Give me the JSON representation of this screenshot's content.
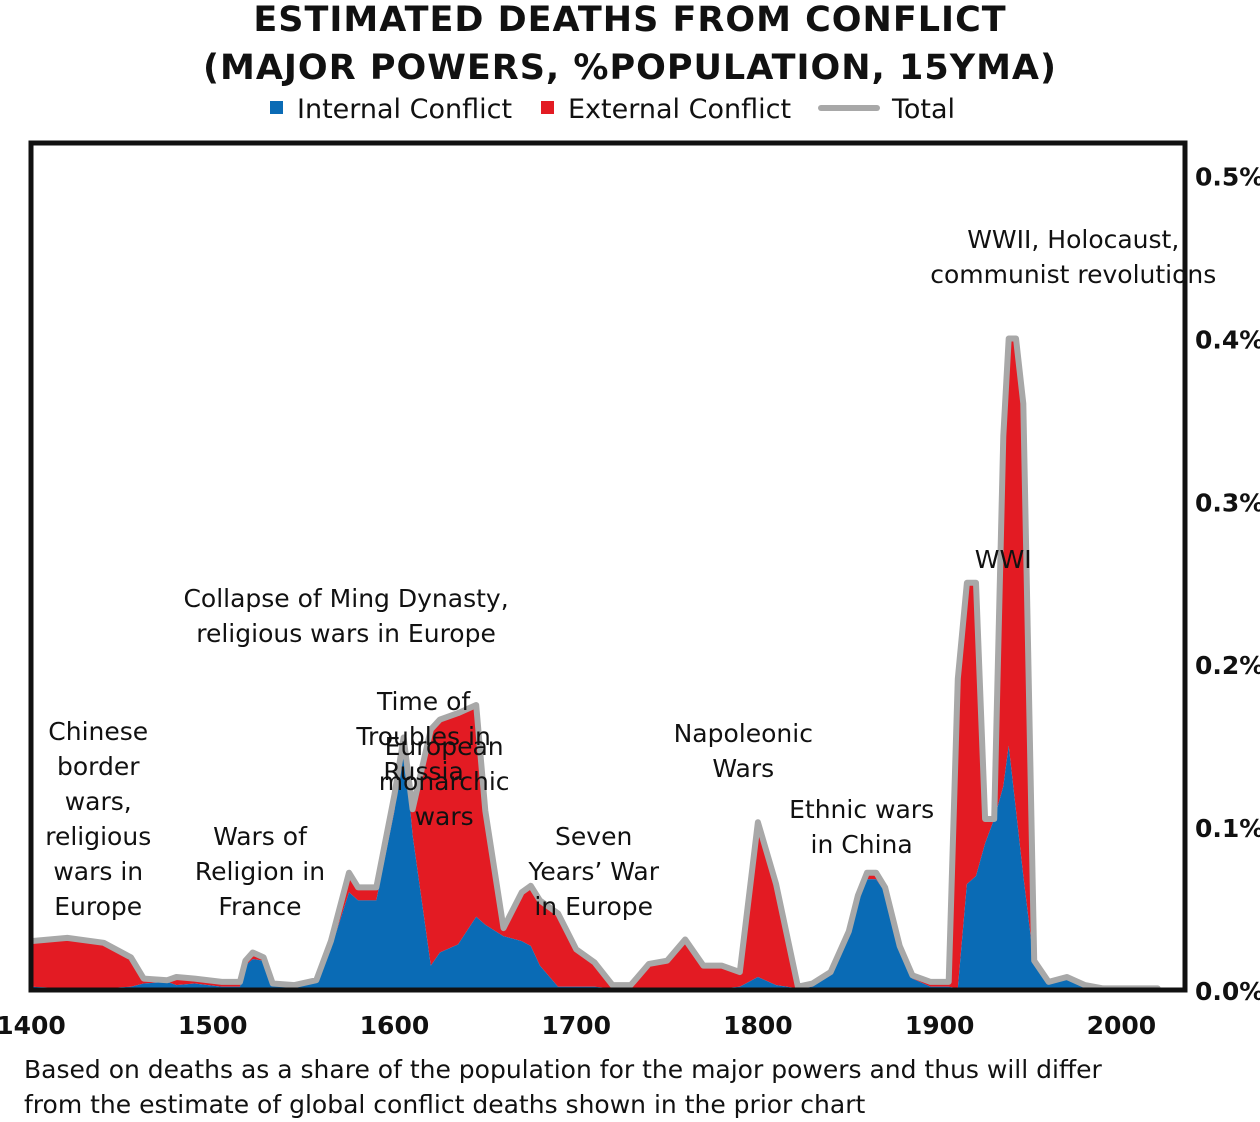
{
  "title_line1": "ESTIMATED DEATHS FROM CONFLICT",
  "title_line2": "(MAJOR POWERS, %POPULATION, 15YMA)",
  "legend": {
    "internal": "Internal Conflict",
    "external": "External Conflict",
    "total": "Total"
  },
  "colors": {
    "internal": "#0a6bb5",
    "external": "#e31b23",
    "total": "#a8a8a8"
  },
  "footnote_line1": "Based on deaths as a share of the population for the major powers and thus will differ",
  "footnote_line2": "from the estimate of global conflict deaths shown in the prior chart",
  "chart_data": {
    "type": "area",
    "title": "ESTIMATED DEATHS FROM CONFLICT (MAJOR POWERS, %POPULATION, 15YMA)",
    "xlabel": "",
    "ylabel": "",
    "xlim": [
      1400,
      2035
    ],
    "ylim": [
      0,
      0.0052
    ],
    "x_ticks": [
      1400,
      1500,
      1600,
      1700,
      1800,
      1900,
      2000
    ],
    "x_tick_labels": [
      "1400",
      "1500",
      "1600",
      "1700",
      "1800",
      "1900",
      "2000"
    ],
    "y_ticks": [
      0,
      0.001,
      0.002,
      0.003,
      0.004,
      0.005
    ],
    "y_tick_labels": [
      "0.0%",
      "0.1%",
      "0.2%",
      "0.3%",
      "0.4%",
      "0.5%"
    ],
    "y_axis_side": "right",
    "stacked": true,
    "series": [
      {
        "name": "Internal Conflict",
        "points": [
          [
            1400,
            2e-05
          ],
          [
            1420,
            1e-05
          ],
          [
            1440,
            1e-05
          ],
          [
            1455,
            2e-05
          ],
          [
            1462,
            4e-05
          ],
          [
            1475,
            5e-05
          ],
          [
            1480,
            3e-05
          ],
          [
            1490,
            4e-05
          ],
          [
            1505,
            2e-05
          ],
          [
            1515,
            2e-05
          ],
          [
            1518,
            0.00015
          ],
          [
            1522,
            0.00019
          ],
          [
            1528,
            0.00018
          ],
          [
            1533,
            3e-05
          ],
          [
            1545,
            2e-05
          ],
          [
            1557,
            5e-05
          ],
          [
            1565,
            0.00025
          ],
          [
            1575,
            0.0006
          ],
          [
            1580,
            0.00055
          ],
          [
            1590,
            0.00055
          ],
          [
            1600,
            0.0011
          ],
          [
            1605,
            0.00155
          ],
          [
            1610,
            0.00095
          ],
          [
            1620,
            0.00015
          ],
          [
            1625,
            0.00023
          ],
          [
            1635,
            0.00028
          ],
          [
            1645,
            0.00045
          ],
          [
            1650,
            0.0004
          ],
          [
            1660,
            0.00033
          ],
          [
            1670,
            0.0003
          ],
          [
            1675,
            0.00027
          ],
          [
            1680,
            0.00015
          ],
          [
            1690,
            2e-05
          ],
          [
            1700,
            2e-05
          ],
          [
            1710,
            2e-05
          ],
          [
            1720,
            1e-05
          ],
          [
            1730,
            1e-05
          ],
          [
            1740,
            1e-05
          ],
          [
            1750,
            1e-05
          ],
          [
            1760,
            1e-05
          ],
          [
            1770,
            1e-05
          ],
          [
            1780,
            1e-05
          ],
          [
            1790,
            2e-05
          ],
          [
            1800,
            8e-05
          ],
          [
            1810,
            3e-05
          ],
          [
            1822,
            1e-05
          ],
          [
            1830,
            2e-05
          ],
          [
            1840,
            0.0001
          ],
          [
            1850,
            0.00035
          ],
          [
            1855,
            0.00055
          ],
          [
            1860,
            0.00068
          ],
          [
            1865,
            0.00068
          ],
          [
            1870,
            0.0006
          ],
          [
            1878,
            0.00025
          ],
          [
            1885,
            7e-05
          ],
          [
            1895,
            2e-05
          ],
          [
            1905,
            2e-05
          ],
          [
            1910,
            1e-05
          ],
          [
            1915,
            0.00065
          ],
          [
            1920,
            0.0007
          ],
          [
            1925,
            0.0009
          ],
          [
            1930,
            0.00105
          ],
          [
            1935,
            0.00125
          ],
          [
            1938,
            0.0015
          ],
          [
            1942,
            0.0011
          ],
          [
            1946,
            0.0007
          ],
          [
            1952,
            0.00015
          ],
          [
            1960,
            4e-05
          ],
          [
            1970,
            7e-05
          ],
          [
            1980,
            2e-05
          ],
          [
            1990,
            1e-05
          ],
          [
            2000,
            1e-05
          ],
          [
            2020,
            1e-05
          ]
        ]
      },
      {
        "name": "External Conflict",
        "points": [
          [
            1400,
            0.00028
          ],
          [
            1420,
            0.00031
          ],
          [
            1440,
            0.00028
          ],
          [
            1455,
            0.00018
          ],
          [
            1462,
            3e-05
          ],
          [
            1475,
            1e-05
          ],
          [
            1480,
            5e-05
          ],
          [
            1490,
            3e-05
          ],
          [
            1505,
            3e-05
          ],
          [
            1515,
            3e-05
          ],
          [
            1518,
            3e-05
          ],
          [
            1522,
            4e-05
          ],
          [
            1528,
            2e-05
          ],
          [
            1533,
            1e-05
          ],
          [
            1545,
            1e-05
          ],
          [
            1557,
            1e-05
          ],
          [
            1565,
            5e-05
          ],
          [
            1575,
            0.00012
          ],
          [
            1580,
            8e-05
          ],
          [
            1590,
            8e-05
          ],
          [
            1600,
            0.0001
          ],
          [
            1605,
            0.0
          ],
          [
            1610,
            0.00016
          ],
          [
            1620,
            0.00145
          ],
          [
            1625,
            0.00143
          ],
          [
            1635,
            0.00142
          ],
          [
            1645,
            0.0013
          ],
          [
            1650,
            0.0007
          ],
          [
            1660,
            5e-05
          ],
          [
            1670,
            0.0003
          ],
          [
            1675,
            0.00037
          ],
          [
            1680,
            0.0004
          ],
          [
            1690,
            0.00045
          ],
          [
            1700,
            0.00023
          ],
          [
            1710,
            0.00015
          ],
          [
            1720,
            2e-05
          ],
          [
            1730,
            2e-05
          ],
          [
            1740,
            0.00015
          ],
          [
            1750,
            0.00017
          ],
          [
            1760,
            0.0003
          ],
          [
            1770,
            0.00014
          ],
          [
            1780,
            0.00014
          ],
          [
            1790,
            9e-05
          ],
          [
            1800,
            0.00095
          ],
          [
            1810,
            0.00062
          ],
          [
            1822,
            1e-05
          ],
          [
            1830,
            2e-05
          ],
          [
            1840,
            1e-05
          ],
          [
            1850,
            1e-05
          ],
          [
            1855,
            3e-05
          ],
          [
            1860,
            4e-05
          ],
          [
            1865,
            4e-05
          ],
          [
            1870,
            3e-05
          ],
          [
            1878,
            2e-05
          ],
          [
            1885,
            2e-05
          ],
          [
            1895,
            3e-05
          ],
          [
            1905,
            3e-05
          ],
          [
            1910,
            0.0019
          ],
          [
            1915,
            0.00185
          ],
          [
            1920,
            0.0018
          ],
          [
            1925,
            0.00015
          ],
          [
            1930,
            0.0
          ],
          [
            1935,
            0.00215
          ],
          [
            1938,
            0.0025
          ],
          [
            1942,
            0.0029
          ],
          [
            1946,
            0.0029
          ],
          [
            1952,
            3e-05
          ],
          [
            1960,
            1e-05
          ],
          [
            1970,
            1e-05
          ],
          [
            1980,
            1e-05
          ],
          [
            1990,
            0.0
          ],
          [
            2000,
            0.0
          ],
          [
            2020,
            0.0
          ]
        ]
      }
    ],
    "annotations": [
      {
        "year": 1437,
        "lines": [
          "Chinese",
          "border",
          "wars,",
          "religious",
          "wars in",
          "Europe"
        ]
      },
      {
        "year": 1526,
        "lines": [
          "Wars of",
          "Religion in",
          "France"
        ]
      },
      {
        "year": 1550,
        "lines": [
          "Time of",
          "Troubles in",
          "Russia"
        ]
      },
      {
        "year": 1646,
        "lines": [
          "Collapse of Ming Dynasty,",
          "religious wars in Europe"
        ]
      },
      {
        "year": 1695,
        "lines": [
          "European",
          "monarchic",
          "wars"
        ]
      },
      {
        "year": 1752,
        "lines": [
          "Seven",
          "Years’ War",
          "in Europe"
        ]
      },
      {
        "year": 1809,
        "lines": [
          "Napoleonic",
          "Wars"
        ]
      },
      {
        "year": 1840,
        "lines": [
          "Ethnic wars",
          "in China"
        ]
      },
      {
        "year": 1908,
        "lines": [
          "WWI"
        ]
      },
      {
        "year": 1935,
        "lines": [
          "WWII, Holocaust,",
          "communist revolutions"
        ]
      }
    ]
  }
}
